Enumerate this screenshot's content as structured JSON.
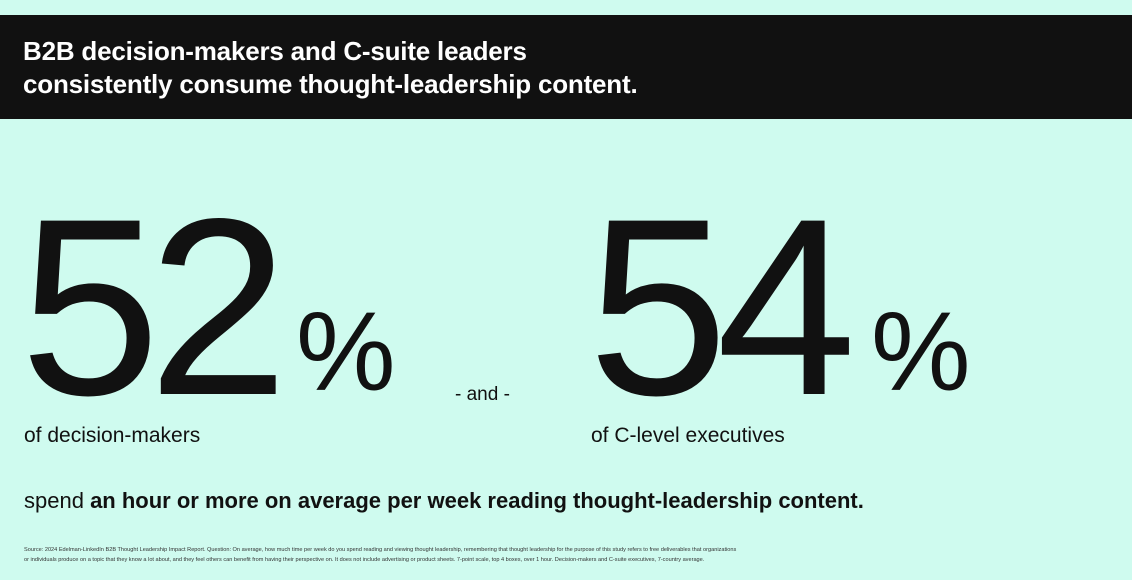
{
  "header": {
    "title_line1": "B2B decision-makers and C-suite leaders",
    "title_line2": "consistently consume thought-leadership content."
  },
  "stats": [
    {
      "number": "52",
      "unit": "%",
      "label": "of decision-makers"
    },
    {
      "number": "54",
      "unit": "%",
      "label": "of C-level executives"
    }
  ],
  "connector": "- and -",
  "summary": {
    "prefix": "spend ",
    "bold": "an hour or more on average per week reading thought-leadership content."
  },
  "source": {
    "line1": "Source: 2024 Edelman-LinkedIn B2B Thought Leadership Impact Report. Question: On average, how much time per week do you spend reading and viewing thought leadership, remembering that thought leadership for the purpose of this study refers to free deliverables that organizations",
    "line2": "or individuals produce on a topic that they know a lot about, and they feel others can benefit from having their perspective on. It does not include advertising or product sheets. 7-point scale, top 4 boxes, over 1 hour. Decision-makers and C-suite executives, 7-country average."
  },
  "colors": {
    "background": "#cffbef",
    "header_background": "#111111",
    "header_text": "#ffffff",
    "text": "#111111"
  }
}
